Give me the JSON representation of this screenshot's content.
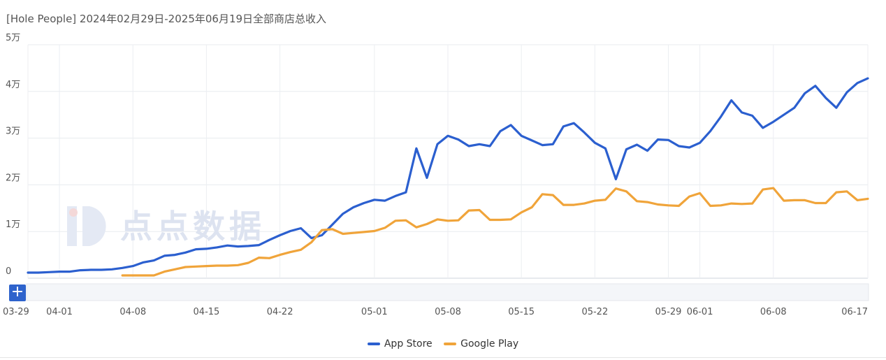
{
  "title": "[Hole People] 2024年02月29日-2025年06月19日全部商店总收入",
  "zoom_button": "+",
  "watermark": "点点数据",
  "colors": {
    "app_store": "#2b5fcf",
    "google_play": "#f0a43a"
  },
  "chart_data": {
    "type": "line",
    "title": "[Hole People] 2024年02月29日-2025年06月19日全部商店总收入",
    "x_ticks": [
      "03-29",
      "04-01",
      "04-08",
      "04-15",
      "04-22",
      "05-01",
      "05-08",
      "05-15",
      "05-22",
      "05-29",
      "06-01",
      "06-08",
      "06-17"
    ],
    "x_tick_index": [
      0,
      3,
      10,
      17,
      24,
      33,
      40,
      47,
      54,
      61,
      64,
      71,
      80
    ],
    "y_ticks": [
      "0",
      "1万",
      "2万",
      "3万",
      "4万",
      "5万"
    ],
    "ylim": [
      0,
      50000
    ],
    "grid": true,
    "legend_position": "bottom",
    "series": [
      {
        "name": "App Store",
        "values": [
          1200,
          1200,
          1300,
          1400,
          1400,
          1700,
          1800,
          1800,
          1900,
          2200,
          2600,
          3400,
          3800,
          4800,
          5000,
          5500,
          6200,
          6300,
          6600,
          7000,
          6800,
          6900,
          7100,
          8200,
          9200,
          10100,
          10700,
          8600,
          9200,
          11500,
          13800,
          15200,
          16100,
          16800,
          16600,
          17600,
          18400,
          27800,
          21500,
          28700,
          30500,
          29700,
          28300,
          28700,
          28300,
          31500,
          32800,
          30500,
          29500,
          28500,
          28700,
          32500,
          33200,
          31200,
          29000,
          27800,
          21200,
          27600,
          28600,
          27300,
          29700,
          29600,
          28300,
          28000,
          29000,
          31500,
          34600,
          38100,
          35500,
          34800,
          32200,
          33500,
          35000,
          36500,
          39600,
          41200,
          38600,
          36500,
          39800,
          41800,
          42800
        ]
      },
      {
        "name": "Google Play",
        "values": [
          null,
          null,
          null,
          null,
          null,
          null,
          null,
          null,
          null,
          600,
          600,
          600,
          600,
          1400,
          1900,
          2400,
          2500,
          2600,
          2700,
          2700,
          2800,
          3300,
          4400,
          4300,
          5000,
          5600,
          6100,
          7700,
          10300,
          10500,
          9500,
          9700,
          9900,
          10100,
          10800,
          12300,
          12400,
          10900,
          11600,
          12600,
          12300,
          12400,
          14500,
          14600,
          12500,
          12500,
          12600,
          14100,
          15200,
          18000,
          17800,
          15700,
          15700,
          16000,
          16600,
          16800,
          19200,
          18600,
          16500,
          16300,
          15800,
          15600,
          15500,
          17500,
          18200,
          15500,
          15600,
          16000,
          15900,
          16000,
          19000,
          19300,
          16600,
          16700,
          16700,
          16100,
          16100,
          18400,
          18600,
          16700,
          17000
        ]
      }
    ]
  }
}
